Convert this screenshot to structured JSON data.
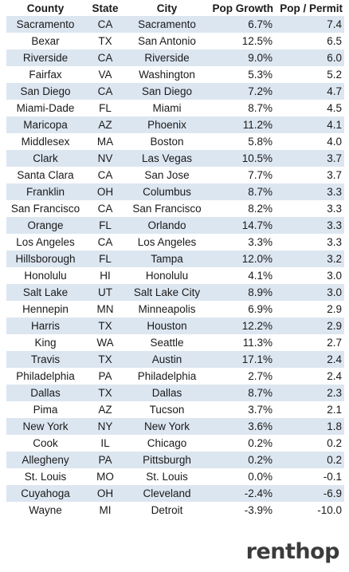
{
  "chart_data": {
    "type": "table",
    "columns": [
      "County",
      "State",
      "City",
      "Pop Growth",
      "Pop / Permit"
    ],
    "rows": [
      [
        "Sacramento",
        "CA",
        "Sacramento",
        "6.7%",
        "7.4"
      ],
      [
        "Bexar",
        "TX",
        "San Antonio",
        "12.5%",
        "6.5"
      ],
      [
        "Riverside",
        "CA",
        "Riverside",
        "9.0%",
        "6.0"
      ],
      [
        "Fairfax",
        "VA",
        "Washington",
        "5.3%",
        "5.2"
      ],
      [
        "San Diego",
        "CA",
        "San Diego",
        "7.2%",
        "4.7"
      ],
      [
        "Miami-Dade",
        "FL",
        "Miami",
        "8.7%",
        "4.5"
      ],
      [
        "Maricopa",
        "AZ",
        "Phoenix",
        "11.2%",
        "4.1"
      ],
      [
        "Middlesex",
        "MA",
        "Boston",
        "5.8%",
        "4.0"
      ],
      [
        "Clark",
        "NV",
        "Las Vegas",
        "10.5%",
        "3.7"
      ],
      [
        "Santa Clara",
        "CA",
        "San Jose",
        "7.7%",
        "3.7"
      ],
      [
        "Franklin",
        "OH",
        "Columbus",
        "8.7%",
        "3.3"
      ],
      [
        "San Francisco",
        "CA",
        "San Francisco",
        "8.2%",
        "3.3"
      ],
      [
        "Orange",
        "FL",
        "Orlando",
        "14.7%",
        "3.3"
      ],
      [
        "Los Angeles",
        "CA",
        "Los Angeles",
        "3.3%",
        "3.3"
      ],
      [
        "Hillsborough",
        "FL",
        "Tampa",
        "12.0%",
        "3.2"
      ],
      [
        "Honolulu",
        "HI",
        "Honolulu",
        "4.1%",
        "3.0"
      ],
      [
        "Salt Lake",
        "UT",
        "Salt Lake City",
        "8.9%",
        "3.0"
      ],
      [
        "Hennepin",
        "MN",
        "Minneapolis",
        "6.9%",
        "2.9"
      ],
      [
        "Harris",
        "TX",
        "Houston",
        "12.2%",
        "2.9"
      ],
      [
        "King",
        "WA",
        "Seattle",
        "11.3%",
        "2.7"
      ],
      [
        "Travis",
        "TX",
        "Austin",
        "17.1%",
        "2.4"
      ],
      [
        "Philadelphia",
        "PA",
        "Philadelphia",
        "2.7%",
        "2.4"
      ],
      [
        "Dallas",
        "TX",
        "Dallas",
        "8.7%",
        "2.3"
      ],
      [
        "Pima",
        "AZ",
        "Tucson",
        "3.7%",
        "2.1"
      ],
      [
        "New York",
        "NY",
        "New York",
        "3.6%",
        "1.8"
      ],
      [
        "Cook",
        "IL",
        "Chicago",
        "0.2%",
        "0.2"
      ],
      [
        "Allegheny",
        "PA",
        "Pittsburgh",
        "0.2%",
        "0.2"
      ],
      [
        "St. Louis",
        "MO",
        "St. Louis",
        "0.0%",
        "-0.1"
      ],
      [
        "Cuyahoga",
        "OH",
        "Cleveland",
        "-2.4%",
        "-6.9"
      ],
      [
        "Wayne",
        "MI",
        "Detroit",
        "-3.9%",
        "-10.0"
      ]
    ],
    "row_colors": [
      "#dce6f1",
      "#ffffff"
    ]
  },
  "brand": {
    "logo_text": "renthop",
    "logo_color": "#3b3b3b"
  }
}
